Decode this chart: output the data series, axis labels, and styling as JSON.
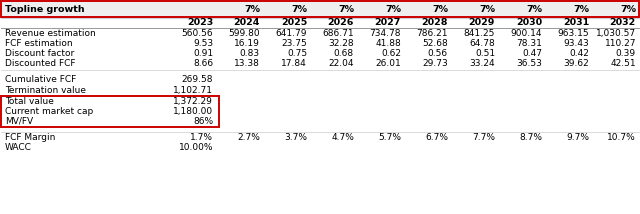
{
  "topline_growth_label": "Topline growth",
  "topline_growth_values": [
    "7%",
    "7%",
    "7%",
    "7%",
    "7%",
    "7%",
    "7%",
    "7%",
    "7%"
  ],
  "years": [
    "2023",
    "2024",
    "2025",
    "2026",
    "2027",
    "2028",
    "2029",
    "2030",
    "2031",
    "2032"
  ],
  "revenue_estimation": [
    "560.56",
    "599.80",
    "641.79",
    "686.71",
    "734.78",
    "786.21",
    "841.25",
    "900.14",
    "963.15",
    "1,030.57"
  ],
  "fcf_estimation": [
    "9.53",
    "16.19",
    "23.75",
    "32.28",
    "41.88",
    "52.68",
    "64.78",
    "78.31",
    "93.43",
    "110.27"
  ],
  "discount_factor": [
    "0.91",
    "0.83",
    "0.75",
    "0.68",
    "0.62",
    "0.56",
    "0.51",
    "0.47",
    "0.42",
    "0.39"
  ],
  "discounted_fcf": [
    "8.66",
    "13.38",
    "17.84",
    "22.04",
    "26.01",
    "29.73",
    "33.24",
    "36.53",
    "39.62",
    "42.51"
  ],
  "cumulative_fcf_label": "Cumulative FCF",
  "cumulative_fcf_value": "269.58",
  "termination_value_label": "Termination value",
  "termination_value_value": "1,102.71",
  "total_value_label": "Total value",
  "total_value_value": "1,372.29",
  "current_market_cap_label": "Current market cap",
  "current_market_cap_value": "1,180.00",
  "mv_fv_label": "MV/FV",
  "mv_fv_value": "86%",
  "fcf_margin_label": "FCF Margin",
  "fcf_margin_values": [
    "1.7%",
    "2.7%",
    "3.7%",
    "4.7%",
    "5.7%",
    "6.7%",
    "7.7%",
    "8.7%",
    "9.7%",
    "10.7%"
  ],
  "wacc_label": "WACC",
  "wacc_value": "10.00%",
  "header_border": "#CC0000",
  "box_border": "#CC0000",
  "text_color": "#000000",
  "font_size": 6.5,
  "bold_font_size": 6.8
}
